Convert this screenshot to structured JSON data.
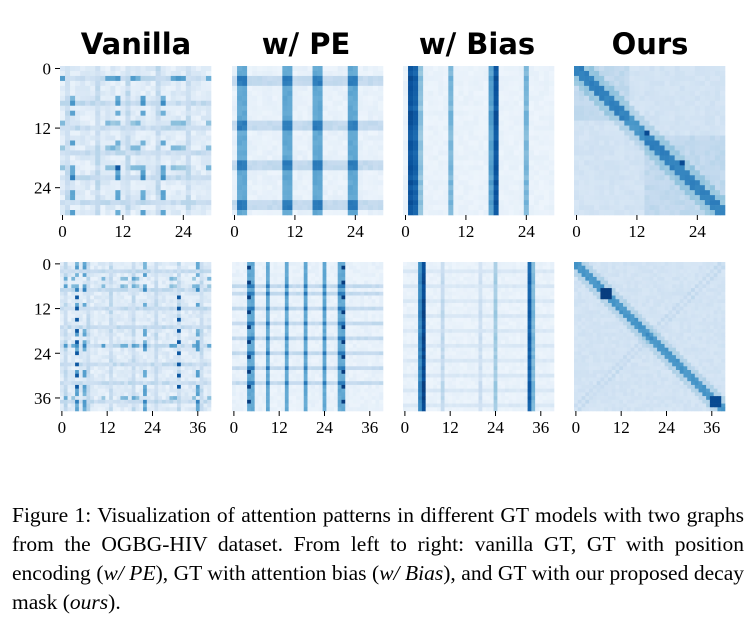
{
  "column_titles": [
    "Vanilla",
    "w/ PE",
    "w/ Bias",
    "Ours"
  ],
  "chart_data": {
    "type": "heatmap",
    "colormap": "Blues",
    "rows": [
      {
        "size": 30,
        "yticks": [
          "0",
          "12",
          "24"
        ],
        "xticks": [
          "0",
          "12",
          "24"
        ]
      },
      {
        "size": 40,
        "yticks": [
          "0",
          "12",
          "24",
          "36"
        ],
        "xticks": [
          "0",
          "12",
          "24",
          "36"
        ]
      }
    ],
    "panels": [
      {
        "row": 0,
        "col": 0,
        "model": "Vanilla",
        "pattern": "scattered"
      },
      {
        "row": 0,
        "col": 1,
        "model": "w/ PE",
        "pattern": "grid"
      },
      {
        "row": 0,
        "col": 2,
        "model": "w/ Bias",
        "pattern": "vertical-stripes"
      },
      {
        "row": 0,
        "col": 3,
        "model": "Ours",
        "pattern": "decay-diagonal"
      },
      {
        "row": 1,
        "col": 0,
        "model": "Vanilla",
        "pattern": "scattered"
      },
      {
        "row": 1,
        "col": 1,
        "model": "w/ PE",
        "pattern": "grid"
      },
      {
        "row": 1,
        "col": 2,
        "model": "w/ Bias",
        "pattern": "vertical-stripes"
      },
      {
        "row": 1,
        "col": 3,
        "model": "Ours",
        "pattern": "decay-diagonal"
      }
    ]
  },
  "caption": {
    "prefix": "Figure 1: Visualization of attention patterns in different GT models with two graphs from the OGBG-HIV dataset. From left to right: vanilla GT, GT with position encoding (",
    "pe": "w/ PE",
    "mid1": "), GT with attention bias (",
    "bias": "w/ Bias",
    "mid2": "), and GT with our proposed decay mask (",
    "ours": "ours",
    "suffix": ")."
  }
}
